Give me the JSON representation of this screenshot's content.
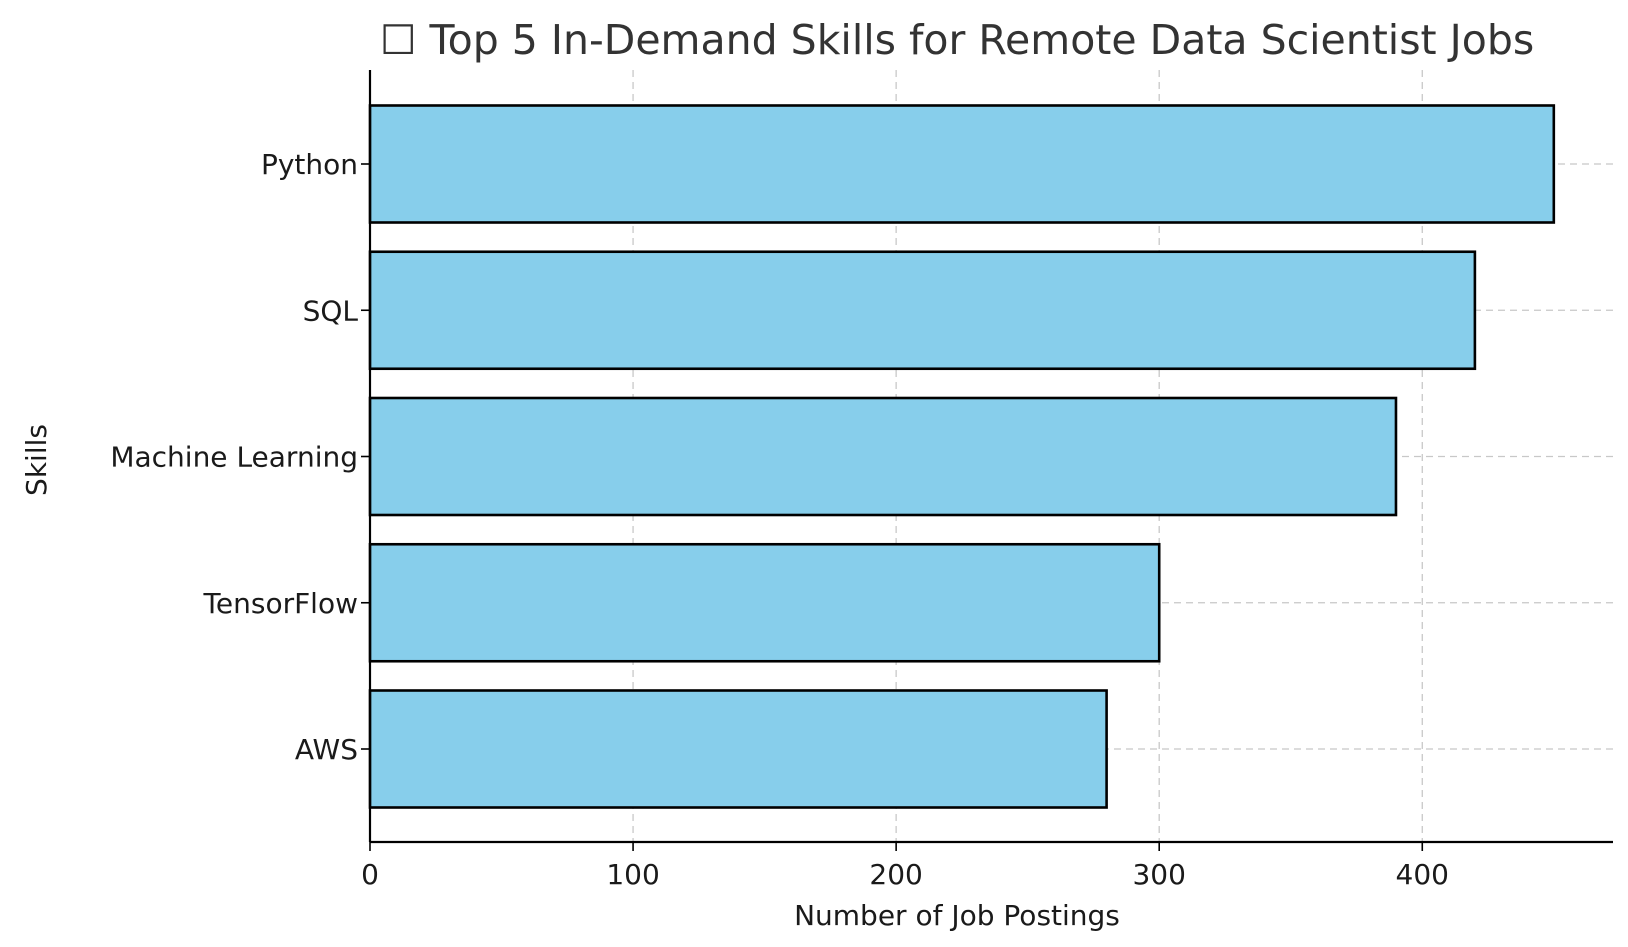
{
  "chart_data": {
    "type": "bar",
    "orientation": "horizontal",
    "title": "☐ Top 5 In-Demand Skills for Remote Data Scientist Jobs",
    "xlabel": "Number of Job Postings",
    "ylabel": "Skills",
    "categories": [
      "Python",
      "SQL",
      "Machine Learning",
      "TensorFlow",
      "AWS"
    ],
    "values": [
      450,
      420,
      390,
      300,
      280
    ],
    "xlim": [
      0,
      472.5
    ],
    "xticks": [
      0,
      100,
      200,
      300,
      400
    ],
    "grid": true,
    "bar_color": "#87ceeb",
    "bar_edge_color": "#000000",
    "grid_color": "#c8c8c8"
  }
}
